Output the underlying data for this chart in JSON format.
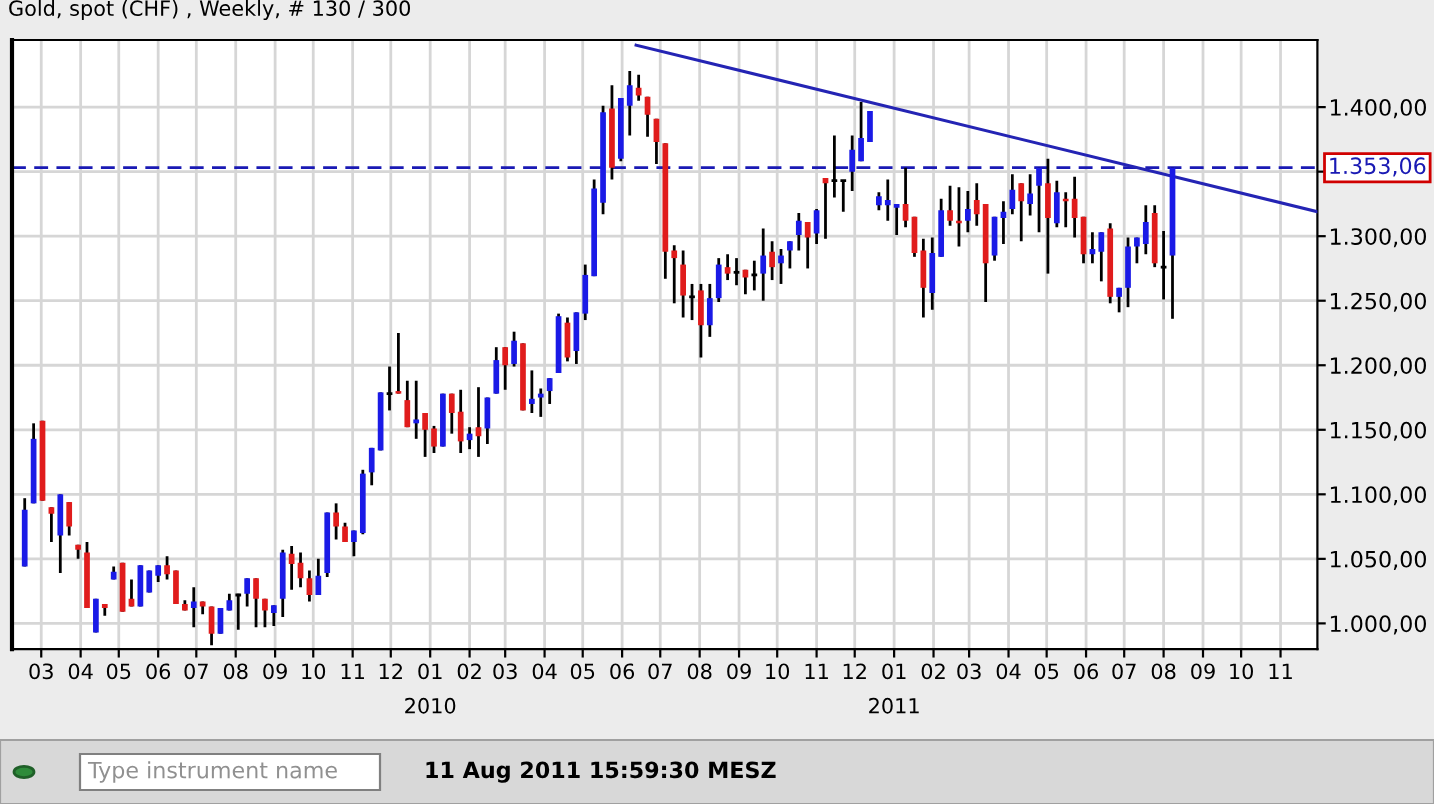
{
  "chart_data": {
    "type": "candlestick",
    "title": "Gold, spot (CHF) , Weekly, # 130 / 300",
    "colors": [
      "#1a1ae6",
      "#1a1ae6",
      "#e01c1c",
      "#e01c1c",
      "#1a1ae6",
      "#e01c1c",
      "#e01c1c",
      "#e01c1c",
      "#1a1ae6",
      "#e01c1c",
      "#1a1ae6",
      "#e01c1c",
      "#e01c1c",
      "#1a1ae6",
      "#1a1ae6",
      "#1a1ae6",
      "#e01c1c",
      "#e01c1c",
      "#e01c1c",
      "#1a1ae6",
      "#e01c1c",
      "#e01c1c",
      "#1a1ae6",
      "#1a1ae6",
      "#000000",
      "#1a1ae6",
      "#e01c1c",
      "#e01c1c",
      "#1a1ae6",
      "#1a1ae6",
      "#e01c1c",
      "#e01c1c",
      "#e01c1c",
      "#1a1ae6",
      "#1a1ae6",
      "#e01c1c",
      "#e01c1c",
      "#1a1ae6",
      "#1a1ae6",
      "#1a1ae6",
      "#1a1ae6",
      "#000000",
      "#e01c1c",
      "#e01c1c",
      "#1a1ae6",
      "#e01c1c",
      "#e01c1c",
      "#1a1ae6",
      "#e01c1c",
      "#e01c1c",
      "#1a1ae6",
      "#e01c1c",
      "#1a1ae6",
      "#1a1ae6",
      "#e01c1c",
      "#1a1ae6",
      "#e01c1c",
      "#1a1ae6",
      "#1a1ae6",
      "#1a1ae6",
      "#1a1ae6",
      "#e01c1c",
      "#1a1ae6",
      "#1a1ae6",
      "#1a1ae6",
      "#1a1ae6",
      "#e01c1c",
      "#1a1ae6",
      "#1a1ae6",
      "#e01c1c",
      "#e01c1c",
      "#e01c1c",
      "#e01c1c",
      "#e01c1c",
      "#e01c1c",
      "#000000",
      "#e01c1c",
      "#1a1ae6",
      "#1a1ae6",
      "#e01c1c",
      "#000000",
      "#e01c1c",
      "#000000",
      "#1a1ae6",
      "#e01c1c",
      "#1a1ae6",
      "#1a1ae6",
      "#1a1ae6",
      "#e01c1c",
      "#1a1ae6",
      "#e01c1c",
      "#000000",
      "#000000",
      "#1a1ae6",
      "#1a1ae6",
      "#1a1ae6",
      "#1a1ae6",
      "#1a1ae6",
      "#1a1ae6",
      "#e01c1c",
      "#e01c1c",
      "#e01c1c",
      "#1a1ae6",
      "#1a1ae6",
      "#e01c1c",
      "#e01c1c",
      "#1a1ae6",
      "#e01c1c",
      "#e01c1c",
      "#1a1ae6",
      "#1a1ae6",
      "#1a1ae6",
      "#e01c1c",
      "#1a1ae6",
      "#1a1ae6",
      "#e01c1c",
      "#1a1ae6",
      "#e01c1c",
      "#e01c1c",
      "#e01c1c",
      "#1a1ae6",
      "#1a1ae6",
      "#e01c1c",
      "#1a1ae6",
      "#1a1ae6",
      "#1a1ae6",
      "#1a1ae6",
      "#e01c1c",
      "#000000",
      "#1a1ae6"
    ],
    "x": [
      "2009-02-16",
      "2009-02-23",
      "2009-03-02",
      "2009-03-09",
      "2009-03-16",
      "2009-03-23",
      "2009-03-30",
      "2009-04-06",
      "2009-04-13",
      "2009-04-20",
      "2009-04-27",
      "2009-05-04",
      "2009-05-11",
      "2009-05-18",
      "2009-05-25",
      "2009-06-01",
      "2009-06-08",
      "2009-06-15",
      "2009-06-22",
      "2009-06-29",
      "2009-07-06",
      "2009-07-13",
      "2009-07-20",
      "2009-07-27",
      "2009-08-03",
      "2009-08-10",
      "2009-08-17",
      "2009-08-24",
      "2009-08-31",
      "2009-09-07",
      "2009-09-14",
      "2009-09-21",
      "2009-09-28",
      "2009-10-05",
      "2009-10-12",
      "2009-10-19",
      "2009-10-26",
      "2009-11-02",
      "2009-11-09",
      "2009-11-16",
      "2009-11-23",
      "2009-11-30",
      "2009-12-07",
      "2009-12-14",
      "2009-12-21",
      "2009-12-28",
      "2010-01-04",
      "2010-01-11",
      "2010-01-18",
      "2010-01-25",
      "2010-02-01",
      "2010-02-08",
      "2010-02-15",
      "2010-02-22",
      "2010-03-01",
      "2010-03-08",
      "2010-03-15",
      "2010-03-22",
      "2010-03-29",
      "2010-04-05",
      "2010-04-12",
      "2010-04-19",
      "2010-04-26",
      "2010-05-03",
      "2010-05-10",
      "2010-05-17",
      "2010-05-24",
      "2010-05-31",
      "2010-06-07",
      "2010-06-14",
      "2010-06-21",
      "2010-06-28",
      "2010-07-05",
      "2010-07-12",
      "2010-07-19",
      "2010-07-26",
      "2010-08-02",
      "2010-08-09",
      "2010-08-16",
      "2010-08-23",
      "2010-08-30",
      "2010-09-06",
      "2010-09-13",
      "2010-09-20",
      "2010-09-27",
      "2010-10-04",
      "2010-10-11",
      "2010-10-18",
      "2010-10-25",
      "2010-11-01",
      "2010-11-08",
      "2010-11-15",
      "2010-11-22",
      "2010-11-29",
      "2010-12-06",
      "2010-12-13",
      "2010-12-20",
      "2010-12-27",
      "2011-01-03",
      "2011-01-10",
      "2011-01-17",
      "2011-01-24",
      "2011-01-31",
      "2011-02-07",
      "2011-02-14",
      "2011-02-21",
      "2011-02-28",
      "2011-03-07",
      "2011-03-14",
      "2011-03-21",
      "2011-03-28",
      "2011-04-04",
      "2011-04-11",
      "2011-04-18",
      "2011-04-25",
      "2011-05-02",
      "2011-05-09",
      "2011-05-16",
      "2011-05-23",
      "2011-05-30",
      "2011-06-06",
      "2011-06-13",
      "2011-06-20",
      "2011-06-27",
      "2011-07-04",
      "2011-07-11",
      "2011-07-18",
      "2011-07-25",
      "2011-08-01",
      "2011-08-08"
    ],
    "ohlc": [
      [
        1044,
        1097,
        1044,
        1088
      ],
      [
        1093,
        1155,
        1093,
        1143
      ],
      [
        1157,
        1157,
        1095,
        1095
      ],
      [
        1090,
        1090,
        1063,
        1085
      ],
      [
        1068,
        1100,
        1039,
        1100
      ],
      [
        1094,
        1094,
        1068,
        1075
      ],
      [
        1061,
        1061,
        1050,
        1057
      ],
      [
        1055,
        1063,
        1012,
        1012
      ],
      [
        993,
        1019,
        993,
        1019
      ],
      [
        1015,
        1015,
        1006,
        1012
      ],
      [
        1034,
        1044,
        1034,
        1040
      ],
      [
        1047,
        1047,
        1009,
        1009
      ],
      [
        1019,
        1034,
        1013,
        1013
      ],
      [
        1013,
        1045,
        1013,
        1045
      ],
      [
        1024,
        1041,
        1024,
        1041
      ],
      [
        1037,
        1045,
        1032,
        1045
      ],
      [
        1045,
        1052,
        1034,
        1038
      ],
      [
        1041,
        1041,
        1015,
        1015
      ],
      [
        1015,
        1018,
        1010,
        1010
      ],
      [
        1012,
        1028,
        997,
        1017
      ],
      [
        1017,
        1017,
        1007,
        1013
      ],
      [
        1013,
        1013,
        983,
        992
      ],
      [
        992,
        1012,
        992,
        1012
      ],
      [
        1010,
        1023,
        1010,
        1018
      ],
      [
        1022,
        1023,
        995,
        1022
      ],
      [
        1023,
        1035,
        1013,
        1035
      ],
      [
        1035,
        1035,
        997,
        1019
      ],
      [
        1019,
        1019,
        997,
        1010
      ],
      [
        1008,
        1014,
        998,
        1014
      ],
      [
        1019,
        1057,
        1005,
        1055
      ],
      [
        1054,
        1060,
        1026,
        1046
      ],
      [
        1047,
        1055,
        1028,
        1035
      ],
      [
        1035,
        1041,
        1017,
        1022
      ],
      [
        1022,
        1050,
        1022,
        1037
      ],
      [
        1039,
        1086,
        1036,
        1086
      ],
      [
        1086,
        1093,
        1065,
        1075
      ],
      [
        1075,
        1078,
        1063,
        1063
      ],
      [
        1063,
        1072,
        1052,
        1072
      ],
      [
        1070,
        1119,
        1069,
        1116
      ],
      [
        1117,
        1136,
        1107,
        1136
      ],
      [
        1134,
        1179,
        1134,
        1179
      ],
      [
        1178,
        1199,
        1165,
        1178
      ],
      [
        1180,
        1225,
        1178,
        1178
      ],
      [
        1173,
        1188,
        1152,
        1152
      ],
      [
        1155,
        1188,
        1143,
        1158
      ],
      [
        1163,
        1163,
        1129,
        1150
      ],
      [
        1151,
        1153,
        1132,
        1137
      ],
      [
        1137,
        1178,
        1137,
        1178
      ],
      [
        1178,
        1178,
        1147,
        1163
      ],
      [
        1164,
        1181,
        1132,
        1141
      ],
      [
        1142,
        1152,
        1135,
        1147
      ],
      [
        1152,
        1183,
        1129,
        1145
      ],
      [
        1151,
        1175,
        1139,
        1175
      ],
      [
        1178,
        1214,
        1178,
        1204
      ],
      [
        1214,
        1214,
        1181,
        1200
      ],
      [
        1201,
        1226,
        1199,
        1219
      ],
      [
        1217,
        1217,
        1165,
        1165
      ],
      [
        1170,
        1196,
        1163,
        1174
      ],
      [
        1175,
        1182,
        1160,
        1178
      ],
      [
        1180,
        1190,
        1170,
        1190
      ],
      [
        1194,
        1240,
        1194,
        1238
      ],
      [
        1233,
        1237,
        1203,
        1206
      ],
      [
        1211,
        1241,
        1201,
        1241
      ],
      [
        1240,
        1278,
        1235,
        1270
      ],
      [
        1269,
        1344,
        1269,
        1337
      ],
      [
        1326,
        1401,
        1317,
        1396
      ],
      [
        1399,
        1417,
        1344,
        1353
      ],
      [
        1360,
        1407,
        1358,
        1407
      ],
      [
        1401,
        1428,
        1378,
        1417
      ],
      [
        1415,
        1425,
        1405,
        1409
      ],
      [
        1408,
        1408,
        1377,
        1394
      ],
      [
        1391,
        1391,
        1356,
        1373
      ],
      [
        1372,
        1372,
        1267,
        1288
      ],
      [
        1289,
        1293,
        1248,
        1283
      ],
      [
        1278,
        1289,
        1237,
        1254
      ],
      [
        1253,
        1263,
        1235,
        1253
      ],
      [
        1258,
        1263,
        1206,
        1231
      ],
      [
        1231,
        1263,
        1222,
        1252
      ],
      [
        1252,
        1283,
        1249,
        1278
      ],
      [
        1276,
        1286,
        1266,
        1271
      ],
      [
        1272,
        1283,
        1262,
        1272
      ],
      [
        1274,
        1274,
        1255,
        1268
      ],
      [
        1270,
        1281,
        1258,
        1270
      ],
      [
        1271,
        1306,
        1250,
        1285
      ],
      [
        1288,
        1296,
        1266,
        1276
      ],
      [
        1279,
        1290,
        1263,
        1285
      ],
      [
        1289,
        1296,
        1275,
        1296
      ],
      [
        1301,
        1318,
        1289,
        1312
      ],
      [
        1311,
        1311,
        1275,
        1299
      ],
      [
        1302,
        1321,
        1294,
        1320
      ],
      [
        1345,
        1345,
        1298,
        1341
      ],
      [
        1343,
        1378,
        1330,
        1343
      ],
      [
        1343,
        1343,
        1319,
        1343
      ],
      [
        1350,
        1378,
        1335,
        1367
      ],
      [
        1358,
        1404,
        1358,
        1376
      ],
      [
        1373,
        1397,
        1373,
        1397
      ],
      [
        1324,
        1334,
        1320,
        1331
      ],
      [
        1324,
        1344,
        1312,
        1328
      ],
      [
        1322,
        1325,
        1301,
        1325
      ],
      [
        1325,
        1353,
        1307,
        1312
      ],
      [
        1315,
        1315,
        1284,
        1287
      ],
      [
        1289,
        1298,
        1237,
        1260
      ],
      [
        1256,
        1299,
        1243,
        1287
      ],
      [
        1284,
        1329,
        1284,
        1320
      ],
      [
        1320,
        1339,
        1308,
        1312
      ],
      [
        1312,
        1338,
        1292,
        1310
      ],
      [
        1312,
        1335,
        1303,
        1321
      ],
      [
        1328,
        1341,
        1308,
        1317
      ],
      [
        1325,
        1325,
        1249,
        1279
      ],
      [
        1285,
        1315,
        1281,
        1315
      ],
      [
        1314,
        1327,
        1294,
        1319
      ],
      [
        1321,
        1348,
        1317,
        1336
      ],
      [
        1341,
        1341,
        1296,
        1327
      ],
      [
        1325,
        1348,
        1316,
        1333
      ],
      [
        1339,
        1353,
        1303,
        1353
      ],
      [
        1341,
        1360,
        1271,
        1314
      ],
      [
        1310,
        1343,
        1307,
        1334
      ],
      [
        1329,
        1334,
        1307,
        1327
      ],
      [
        1329,
        1346,
        1299,
        1314
      ],
      [
        1315,
        1315,
        1279,
        1286
      ],
      [
        1286,
        1303,
        1279,
        1290
      ],
      [
        1288,
        1303,
        1265,
        1303
      ],
      [
        1306,
        1310,
        1248,
        1253
      ],
      [
        1253,
        1260,
        1241,
        1260
      ],
      [
        1260,
        1299,
        1245,
        1292
      ],
      [
        1292,
        1299,
        1279,
        1299
      ],
      [
        1294,
        1324,
        1286,
        1311
      ],
      [
        1318,
        1324,
        1276,
        1279
      ],
      [
        1276,
        1304,
        1251,
        1276
      ],
      [
        1285,
        1353,
        1236,
        1353
      ]
    ],
    "series": [
      {
        "type": "line",
        "color": "#2424b4",
        "x": [
          "2010-06-12",
          "2011-11-30"
        ],
        "values": [
          1448,
          1319
        ]
      }
    ],
    "ref_lines": [
      {
        "axis": "y",
        "value": 1353.06,
        "label": "1.353,06",
        "color": "#1a1ab4",
        "line_style": "dashed"
      }
    ],
    "xlim": [
      "2009-02-06",
      "2011-11-30"
    ],
    "xticks": [
      {
        "value": "2009-03-01",
        "label": "03"
      },
      {
        "value": "2009-04-01",
        "label": "04"
      },
      {
        "value": "2009-05-01",
        "label": "05"
      },
      {
        "value": "2009-06-01",
        "label": "06"
      },
      {
        "value": "2009-07-01",
        "label": "07"
      },
      {
        "value": "2009-08-01",
        "label": "08"
      },
      {
        "value": "2009-09-01",
        "label": "09"
      },
      {
        "value": "2009-10-01",
        "label": "10"
      },
      {
        "value": "2009-11-01",
        "label": "11"
      },
      {
        "value": "2009-12-01",
        "label": "12"
      },
      {
        "value": "2010-01-01",
        "label": "01\n2010"
      },
      {
        "value": "2010-02-01",
        "label": "02"
      },
      {
        "value": "2010-03-01",
        "label": "03"
      },
      {
        "value": "2010-04-01",
        "label": "04"
      },
      {
        "value": "2010-05-01",
        "label": "05"
      },
      {
        "value": "2010-06-01",
        "label": "06"
      },
      {
        "value": "2010-07-01",
        "label": "07"
      },
      {
        "value": "2010-08-01",
        "label": "08"
      },
      {
        "value": "2010-09-01",
        "label": "09"
      },
      {
        "value": "2010-10-01",
        "label": "10"
      },
      {
        "value": "2010-11-01",
        "label": "11"
      },
      {
        "value": "2010-12-01",
        "label": "12"
      },
      {
        "value": "2011-01-01",
        "label": "01\n2011"
      },
      {
        "value": "2011-02-01",
        "label": "02"
      },
      {
        "value": "2011-03-01",
        "label": "03"
      },
      {
        "value": "2011-04-01",
        "label": "04"
      },
      {
        "value": "2011-05-01",
        "label": "05"
      },
      {
        "value": "2011-06-01",
        "label": "06"
      },
      {
        "value": "2011-07-01",
        "label": "07"
      },
      {
        "value": "2011-08-01",
        "label": "08"
      },
      {
        "value": "2011-09-01",
        "label": "09"
      },
      {
        "value": "2011-10-01",
        "label": "10"
      },
      {
        "value": "2011-11-01",
        "label": "11"
      }
    ],
    "ylim": [
      980,
      1452
    ],
    "yticks": [
      {
        "value": 1000,
        "label": "1.000,00"
      },
      {
        "value": 1050,
        "label": "1.050,00"
      },
      {
        "value": 1100,
        "label": "1.100,00"
      },
      {
        "value": 1150,
        "label": "1.150,00"
      },
      {
        "value": 1200,
        "label": "1.200,00"
      },
      {
        "value": 1250,
        "label": "1.250,00"
      },
      {
        "value": 1300,
        "label": "1.300,00"
      },
      {
        "value": 1350,
        "label": null
      },
      {
        "value": 1400,
        "label": "1.400,00"
      }
    ],
    "grid": true,
    "annotations": [
      "Type instrument name",
      "11 Aug 2011 15:59:30 MESZ"
    ]
  }
}
